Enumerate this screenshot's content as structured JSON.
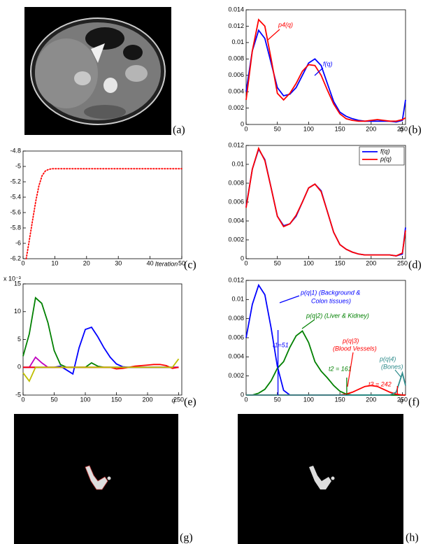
{
  "images": [
    {
      "label": "(a)"
    },
    {
      "label": "(g)"
    },
    {
      "label": "(h)"
    }
  ],
  "chart_data": [
    {
      "type": "line",
      "label": "(b)",
      "xlabel": "q",
      "x": [
        0,
        10,
        20,
        30,
        40,
        50,
        60,
        70,
        80,
        90,
        100,
        110,
        120,
        130,
        140,
        150,
        160,
        170,
        180,
        190,
        200,
        210,
        220,
        230,
        240,
        250,
        255
      ],
      "xlim": [
        0,
        255
      ],
      "xticks": [
        0,
        50,
        100,
        150,
        200,
        250
      ],
      "ylim": [
        0,
        0.014
      ],
      "yticks": [
        0,
        0.002,
        0.004,
        0.006,
        0.008,
        0.01,
        0.012,
        0.014
      ],
      "series": [
        {
          "color": "#0000ff",
          "values": [
            0.004,
            0.009,
            0.0115,
            0.0105,
            0.0075,
            0.0045,
            0.0035,
            0.0037,
            0.0045,
            0.006,
            0.0075,
            0.008,
            0.0072,
            0.005,
            0.0028,
            0.0015,
            0.001,
            0.0007,
            0.0005,
            0.0004,
            0.0004,
            0.0004,
            0.0004,
            0.0004,
            0.0003,
            0.0005,
            0.003
          ]
        },
        {
          "color": "#ff0000",
          "values": [
            0.003,
            0.009,
            0.0128,
            0.012,
            0.008,
            0.0038,
            0.003,
            0.0038,
            0.005,
            0.0065,
            0.0073,
            0.0072,
            0.006,
            0.0042,
            0.0025,
            0.0013,
            0.0007,
            0.0005,
            0.0004,
            0.0004,
            0.0005,
            0.0006,
            0.0005,
            0.0004,
            0.0004,
            0.0006,
            0.0008
          ]
        }
      ],
      "annotations": [
        {
          "text": "p4(q)",
          "color": "#ff0000"
        },
        {
          "text": "f(q)",
          "color": "#0000ff"
        }
      ]
    },
    {
      "type": "line",
      "label": "(c)",
      "xlabel": "Iteration",
      "x": [
        1,
        2,
        3,
        4,
        5,
        6,
        7,
        8,
        9,
        10,
        15,
        20,
        25,
        30,
        35,
        40,
        45,
        50
      ],
      "xlim": [
        0,
        50
      ],
      "xticks": [
        0,
        10,
        20,
        30,
        40,
        50
      ],
      "ylim": [
        -6.2,
        -4.8
      ],
      "yticks": [
        -6.2,
        -6,
        -5.8,
        -5.6,
        -5.4,
        -5.2,
        -5,
        -4.8
      ],
      "line_style": "dotted",
      "series": [
        {
          "color": "#ff0000",
          "values": [
            -6.2,
            -5.95,
            -5.7,
            -5.45,
            -5.25,
            -5.12,
            -5.06,
            -5.04,
            -5.03,
            -5.03,
            -5.03,
            -5.03,
            -5.03,
            -5.03,
            -5.03,
            -5.03,
            -5.03,
            -5.03
          ]
        }
      ]
    },
    {
      "type": "line",
      "label": "(d)",
      "legend": "upper right",
      "x": [
        0,
        10,
        20,
        30,
        40,
        50,
        60,
        70,
        80,
        90,
        100,
        110,
        120,
        130,
        140,
        150,
        160,
        170,
        180,
        190,
        200,
        210,
        220,
        230,
        240,
        250,
        255
      ],
      "xlim": [
        0,
        255
      ],
      "xticks": [
        0,
        50,
        100,
        150,
        200,
        250
      ],
      "ylim": [
        0,
        0.012
      ],
      "yticks": [
        0,
        0.002,
        0.004,
        0.006,
        0.008,
        0.01,
        0.012
      ],
      "series": [
        {
          "name": "f(q)",
          "color": "#0000ff",
          "values": [
            0.0055,
            0.0095,
            0.0116,
            0.0105,
            0.0075,
            0.0045,
            0.0035,
            0.0037,
            0.0045,
            0.006,
            0.0075,
            0.0079,
            0.0072,
            0.005,
            0.0028,
            0.0015,
            0.001,
            0.0007,
            0.0005,
            0.0004,
            0.0004,
            0.0004,
            0.0004,
            0.0004,
            0.0003,
            0.0005,
            0.0033
          ]
        },
        {
          "name": "p(q)",
          "color": "#ff0000",
          "values": [
            0.0054,
            0.0095,
            0.0117,
            0.0104,
            0.0075,
            0.0045,
            0.0034,
            0.0037,
            0.0046,
            0.006,
            0.0075,
            0.0079,
            0.0071,
            0.005,
            0.0028,
            0.0015,
            0.001,
            0.0007,
            0.0005,
            0.0004,
            0.0004,
            0.0004,
            0.0004,
            0.0004,
            0.0003,
            0.0006,
            0.003
          ]
        }
      ]
    },
    {
      "type": "line",
      "label": "(e)",
      "xlabel": "q",
      "y_multiplier": "x 10⁻³",
      "x": [
        0,
        10,
        20,
        30,
        40,
        50,
        60,
        70,
        80,
        90,
        100,
        110,
        120,
        130,
        140,
        150,
        160,
        170,
        180,
        190,
        200,
        210,
        220,
        230,
        240,
        250
      ],
      "xlim": [
        0,
        255
      ],
      "xticks": [
        0,
        50,
        100,
        150,
        200,
        250
      ],
      "ylim": [
        -5,
        15
      ],
      "yticks": [
        -5,
        0,
        5,
        10,
        15
      ],
      "series": [
        {
          "color": "#008000",
          "values": [
            2,
            6,
            12.5,
            11.5,
            8,
            3,
            0.5,
            0,
            0,
            0,
            0,
            0.8,
            0.2,
            0,
            0,
            0,
            0,
            0,
            0,
            0,
            0,
            0,
            0,
            0,
            0,
            0
          ]
        },
        {
          "color": "#0000ff",
          "values": [
            0,
            0,
            0,
            0,
            0,
            0,
            0.2,
            -0.5,
            -1.2,
            3.5,
            6.8,
            7.2,
            5.5,
            3.5,
            1.8,
            0.6,
            0.1,
            0,
            0,
            0,
            0,
            0,
            0,
            0,
            0,
            0
          ]
        },
        {
          "color": "#bf00bf",
          "values": [
            0,
            0,
            1.8,
            0.8,
            0,
            0,
            0,
            0,
            0,
            0,
            0,
            0,
            0,
            0,
            0,
            0,
            0,
            0,
            0,
            0,
            0,
            0,
            0,
            0,
            0,
            0
          ]
        },
        {
          "color": "#ff0000",
          "values": [
            0,
            0,
            0,
            0,
            0,
            0,
            0,
            0,
            0,
            0,
            0,
            0,
            0,
            0,
            0,
            -0.3,
            -0.2,
            0,
            0.2,
            0.3,
            0.4,
            0.5,
            0.5,
            0.3,
            -0.2,
            0
          ]
        },
        {
          "color": "#bfbf00",
          "values": [
            -1,
            -2.5,
            0,
            0,
            0,
            0,
            0,
            0,
            0,
            0,
            0,
            0,
            0,
            0,
            0,
            0,
            0,
            0,
            0,
            0,
            0,
            0,
            0,
            0,
            0,
            1.5
          ]
        }
      ]
    },
    {
      "type": "line",
      "label": "(f)",
      "xlabel": "q",
      "x": [
        0,
        10,
        20,
        30,
        40,
        50,
        60,
        70,
        80,
        90,
        100,
        110,
        120,
        130,
        140,
        150,
        160,
        170,
        180,
        190,
        200,
        210,
        220,
        230,
        240,
        250,
        255
      ],
      "xlim": [
        0,
        255
      ],
      "xticks": [
        0,
        50,
        100,
        150,
        200,
        250
      ],
      "ylim": [
        0,
        0.012
      ],
      "yticks": [
        0,
        0.002,
        0.004,
        0.006,
        0.008,
        0.01,
        0.012
      ],
      "series": [
        {
          "color": "#0000ff",
          "values": [
            0.006,
            0.0095,
            0.0115,
            0.0105,
            0.007,
            0.003,
            0.0005,
            0,
            0,
            0,
            0,
            0,
            0,
            0,
            0,
            0,
            0,
            0,
            0,
            0,
            0,
            0,
            0,
            0,
            0,
            0,
            0
          ]
        },
        {
          "color": "#008000",
          "values": [
            0,
            0,
            0.0002,
            0.0006,
            0.0015,
            0.0028,
            0.0035,
            0.005,
            0.0062,
            0.0067,
            0.0055,
            0.0035,
            0.0025,
            0.0018,
            0.001,
            0.0004,
            0.0001,
            0,
            0,
            0,
            0,
            0,
            0,
            0,
            0,
            0,
            0
          ]
        },
        {
          "color": "#ff0000",
          "values": [
            0,
            0,
            0,
            0,
            0,
            0,
            0,
            0,
            0,
            0,
            0,
            0,
            0,
            0,
            0,
            0,
            0.0001,
            0.0003,
            0.0006,
            0.0009,
            0.001,
            0.0009,
            0.0006,
            0.0003,
            0.0001,
            0,
            0
          ]
        },
        {
          "color": "#2e8b8b",
          "values": [
            0,
            0,
            0,
            0,
            0,
            0,
            0,
            0,
            0,
            0,
            0,
            0,
            0,
            0,
            0,
            0,
            0,
            0,
            0,
            0,
            0,
            0,
            0,
            0,
            0.0003,
            0.0023,
            0.001
          ]
        }
      ],
      "thresholds": [
        {
          "value": 51,
          "label": "t1=51",
          "color": "#0000ff"
        },
        {
          "value": 161,
          "label": "t2 = 161",
          "color": "#008000"
        },
        {
          "value": 242,
          "label": "t3 = 242",
          "color": "#ff0000"
        }
      ],
      "annotations": [
        {
          "text": "p(q|1) (Background &",
          "color": "#0000ff"
        },
        {
          "text": "Colon tissues)",
          "color": "#0000ff"
        },
        {
          "text": "p(q|2) (Liver & Kidney)",
          "color": "#008000"
        },
        {
          "text": "p(q|3)",
          "color": "#ff0000"
        },
        {
          "text": "(Blood Vessels)",
          "color": "#ff0000"
        },
        {
          "text": "p(q|4)",
          "color": "#2e8b8b"
        },
        {
          "text": "(Bones)",
          "color": "#2e8b8b"
        }
      ]
    }
  ]
}
